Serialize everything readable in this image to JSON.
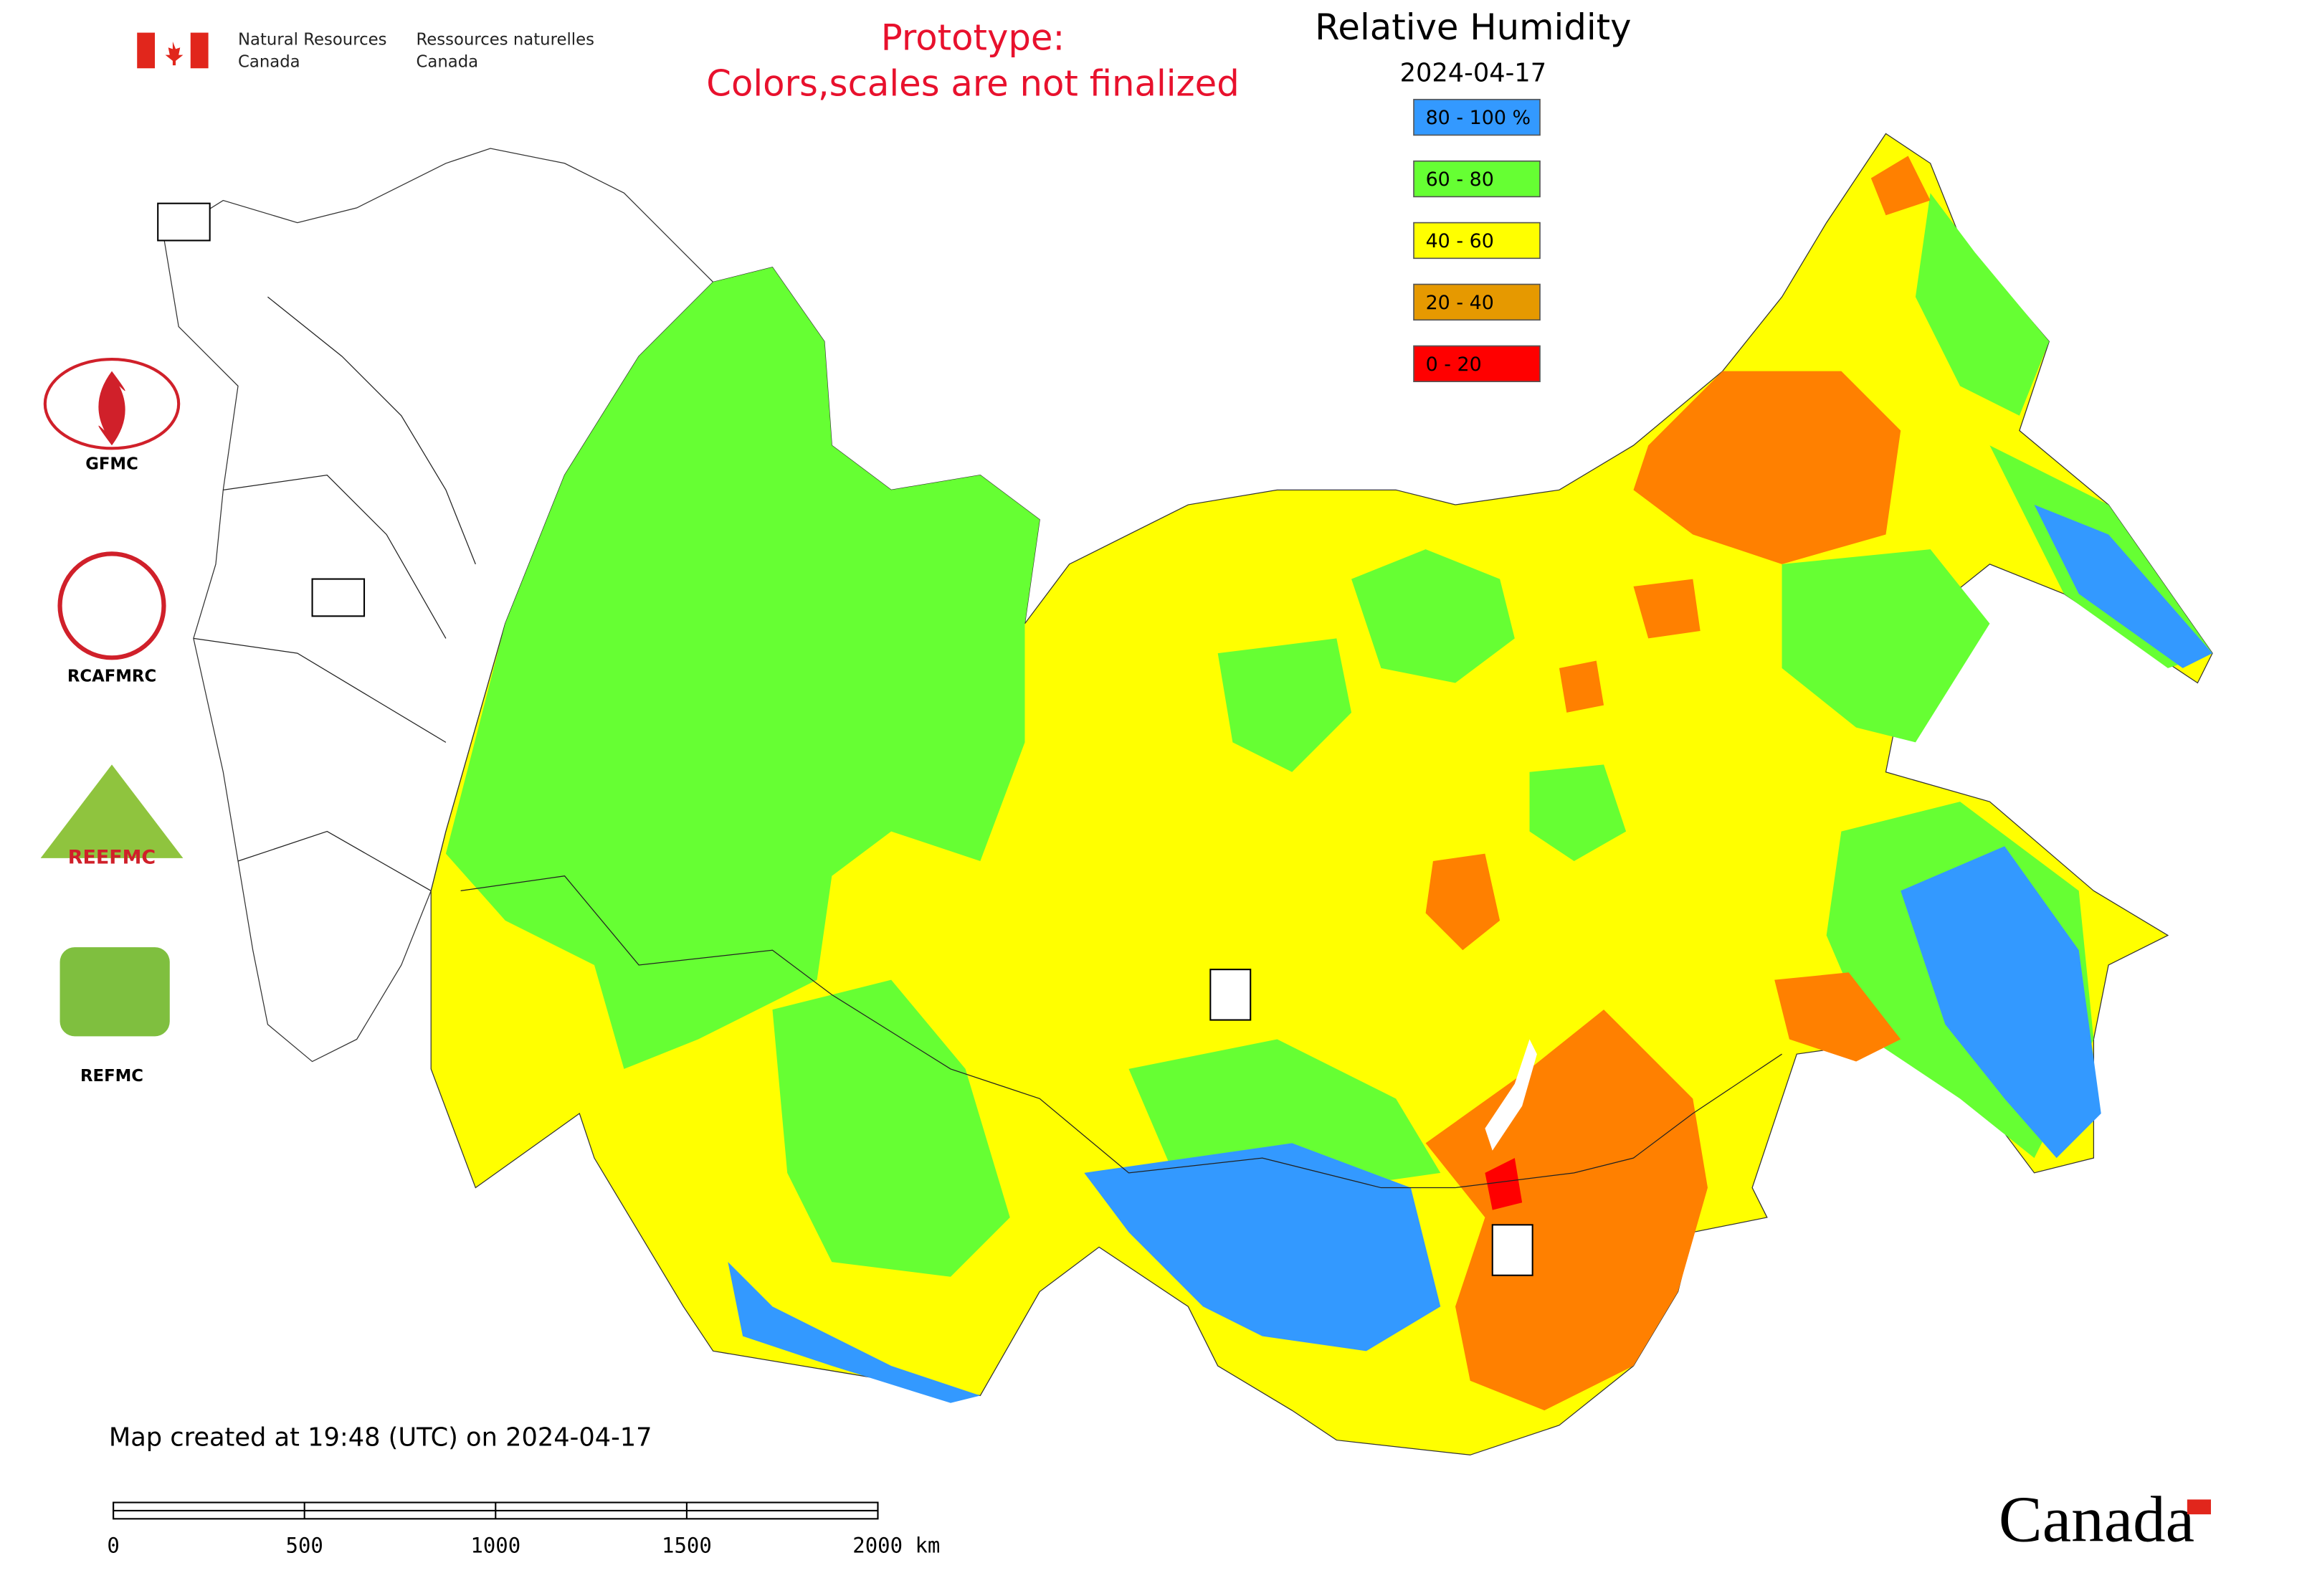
{
  "header": {
    "agency_en": [
      "Natural Resources",
      "Canada"
    ],
    "agency_fr": [
      "Ressources naturelles",
      "Canada"
    ],
    "notice": [
      "Prototype:",
      "Colors,scales are not finalized"
    ]
  },
  "map": {
    "title": "Relative Humidity",
    "date": "2024-04-17",
    "legend": [
      {
        "label": "80 - 100 %",
        "color": "#3399ff"
      },
      {
        "label": "60 - 80",
        "color": "#66ff33"
      },
      {
        "label": "40 - 60",
        "color": "#ffff00"
      },
      {
        "label": "20 - 40",
        "color": "#e69900"
      },
      {
        "label": "0 - 20",
        "color": "#ff0000"
      }
    ],
    "logos": [
      "GFMC",
      "RCAFMRC",
      "REEFMC",
      "REFMC"
    ],
    "credit": "Map created at 19:48 (UTC) on 2024-04-17",
    "scale_labels": [
      "0",
      "500",
      "1000",
      "1500",
      "2000 km"
    ],
    "wordmark": "Canada"
  }
}
